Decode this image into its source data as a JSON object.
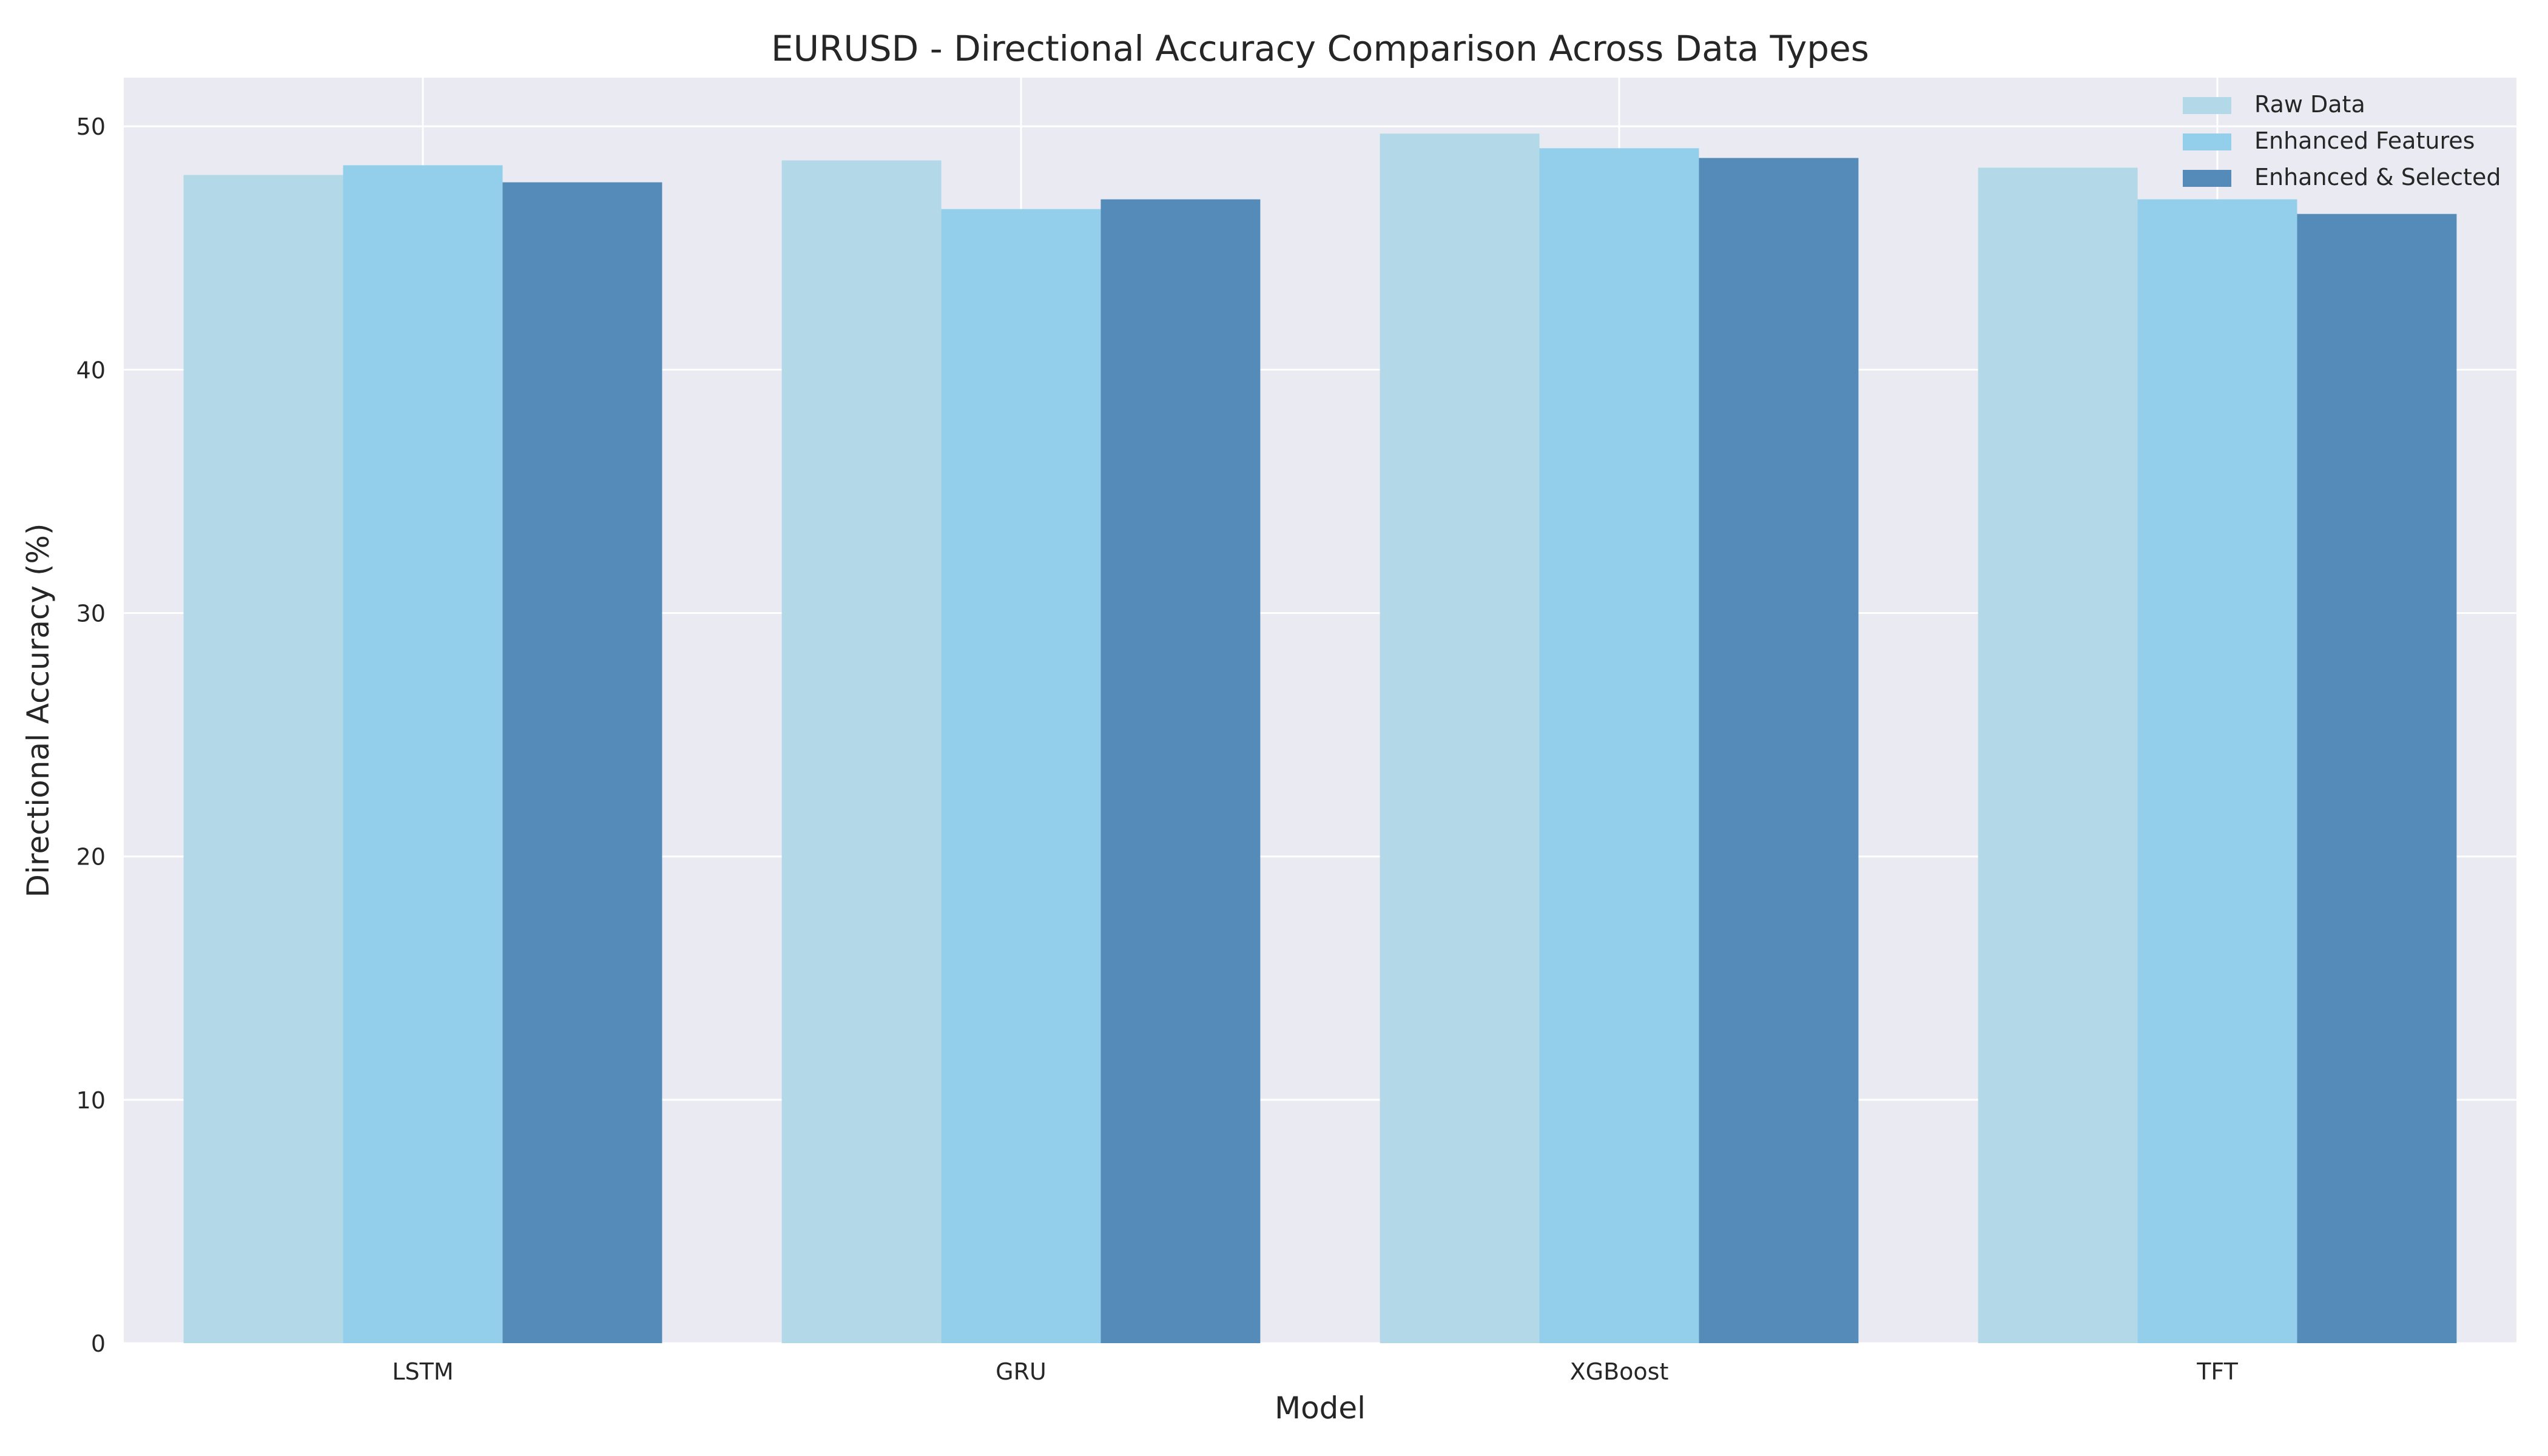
{
  "chart_data": {
    "type": "bar",
    "title": "EURUSD - Directional Accuracy Comparison Across Data Types",
    "xlabel": "Model",
    "ylabel": "Directional Accuracy (%)",
    "categories": [
      "LSTM",
      "GRU",
      "XGBoost",
      "TFT"
    ],
    "series": [
      {
        "name": "Raw Data",
        "color": "#b3d8e7",
        "values": [
          48.0,
          48.6,
          49.7,
          48.3
        ]
      },
      {
        "name": "Enhanced Features",
        "color": "#93cfea",
        "values": [
          48.4,
          46.6,
          49.1,
          47.0
        ]
      },
      {
        "name": "Enhanced & Selected",
        "color": "#558bb9",
        "values": [
          47.7,
          47.0,
          48.7,
          46.4
        ]
      }
    ],
    "ylim": [
      0,
      52
    ],
    "yticks": [
      0,
      10,
      20,
      30,
      40,
      50
    ],
    "grid": true,
    "legend_position": "top-right",
    "background_color": "#eaeaf2"
  }
}
